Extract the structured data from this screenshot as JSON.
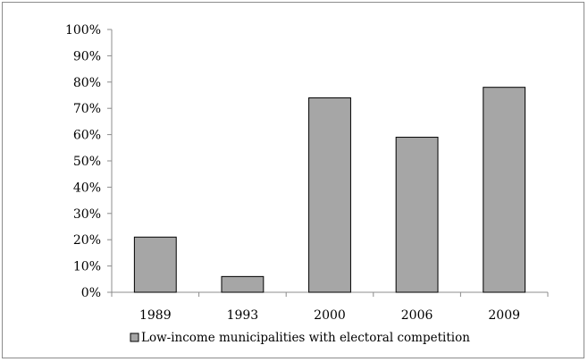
{
  "chart_data": {
    "type": "bar",
    "categories": [
      "1989",
      "1993",
      "2000",
      "2006",
      "2009"
    ],
    "series": [
      {
        "name": "Low-income municipalities with electoral competition",
        "values": [
          21,
          6,
          74,
          59,
          78
        ]
      }
    ],
    "y_ticks": [
      "0%",
      "10%",
      "20%",
      "30%",
      "40%",
      "50%",
      "60%",
      "70%",
      "80%",
      "90%",
      "100%"
    ],
    "ylim": [
      0,
      100
    ],
    "grid": false,
    "legend_position": "bottom",
    "colors": {
      "bar_fill": "#a6a6a6",
      "bar_stroke": "#000000",
      "axis": "#8c8c8c"
    }
  }
}
